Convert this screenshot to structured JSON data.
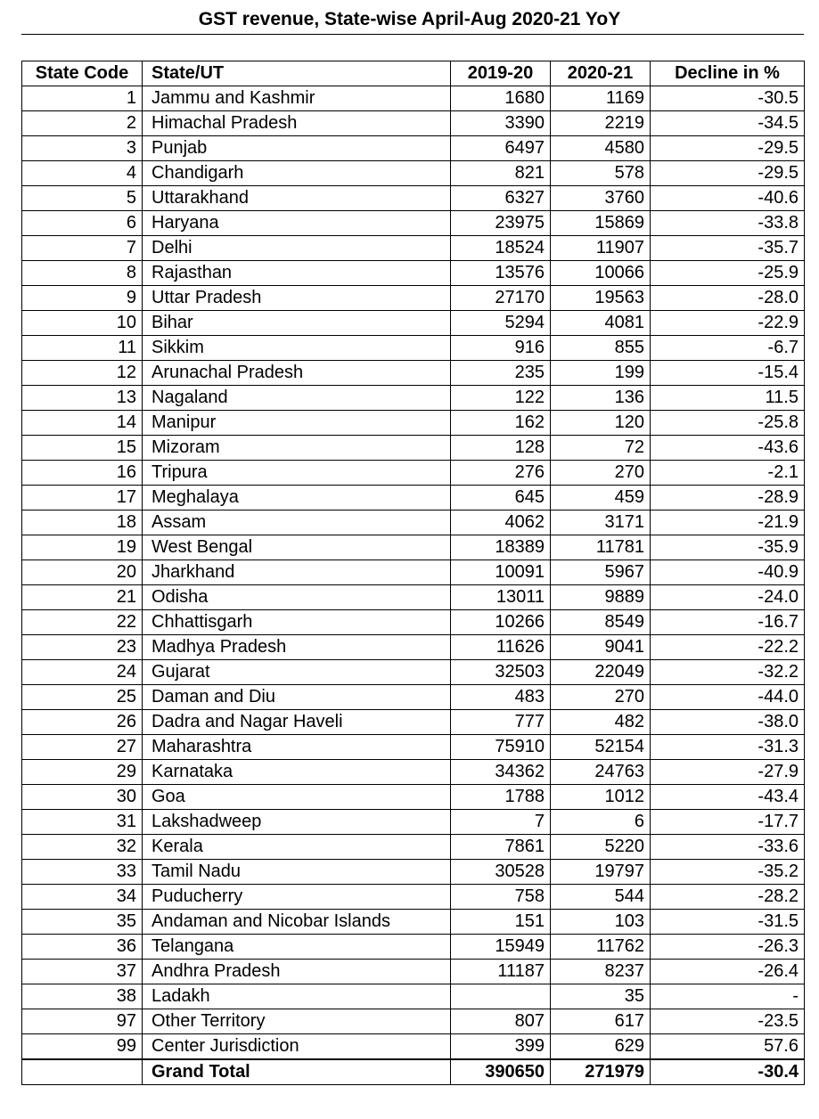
{
  "title": "GST revenue, State-wise April-Aug 2020-21 YoY",
  "columns": {
    "state_code": "State Code",
    "state_ut": "State/UT",
    "y2019": "2019-20",
    "y2020": "2020-21",
    "decline": "Decline in %"
  },
  "rows": [
    {
      "code": "1",
      "name": "Jammu and Kashmir",
      "y2019": "1680",
      "y2020": "1169",
      "decline": "-30.5"
    },
    {
      "code": "2",
      "name": "Himachal Pradesh",
      "y2019": "3390",
      "y2020": "2219",
      "decline": "-34.5"
    },
    {
      "code": "3",
      "name": "Punjab",
      "y2019": "6497",
      "y2020": "4580",
      "decline": "-29.5"
    },
    {
      "code": "4",
      "name": "Chandigarh",
      "y2019": "821",
      "y2020": "578",
      "decline": "-29.5"
    },
    {
      "code": "5",
      "name": "Uttarakhand",
      "y2019": "6327",
      "y2020": "3760",
      "decline": "-40.6"
    },
    {
      "code": "6",
      "name": "Haryana",
      "y2019": "23975",
      "y2020": "15869",
      "decline": "-33.8"
    },
    {
      "code": "7",
      "name": "Delhi",
      "y2019": "18524",
      "y2020": "11907",
      "decline": "-35.7"
    },
    {
      "code": "8",
      "name": "Rajasthan",
      "y2019": "13576",
      "y2020": "10066",
      "decline": "-25.9"
    },
    {
      "code": "9",
      "name": "Uttar Pradesh",
      "y2019": "27170",
      "y2020": "19563",
      "decline": "-28.0"
    },
    {
      "code": "10",
      "name": "Bihar",
      "y2019": "5294",
      "y2020": "4081",
      "decline": "-22.9"
    },
    {
      "code": "11",
      "name": "Sikkim",
      "y2019": "916",
      "y2020": "855",
      "decline": "-6.7"
    },
    {
      "code": "12",
      "name": "Arunachal Pradesh",
      "y2019": "235",
      "y2020": "199",
      "decline": "-15.4"
    },
    {
      "code": "13",
      "name": "Nagaland",
      "y2019": "122",
      "y2020": "136",
      "decline": "11.5"
    },
    {
      "code": "14",
      "name": "Manipur",
      "y2019": "162",
      "y2020": "120",
      "decline": "-25.8"
    },
    {
      "code": "15",
      "name": "Mizoram",
      "y2019": "128",
      "y2020": "72",
      "decline": "-43.6"
    },
    {
      "code": "16",
      "name": "Tripura",
      "y2019": "276",
      "y2020": "270",
      "decline": "-2.1"
    },
    {
      "code": "17",
      "name": "Meghalaya",
      "y2019": "645",
      "y2020": "459",
      "decline": "-28.9"
    },
    {
      "code": "18",
      "name": "Assam",
      "y2019": "4062",
      "y2020": "3171",
      "decline": "-21.9"
    },
    {
      "code": "19",
      "name": "West Bengal",
      "y2019": "18389",
      "y2020": "11781",
      "decline": "-35.9"
    },
    {
      "code": "20",
      "name": "Jharkhand",
      "y2019": "10091",
      "y2020": "5967",
      "decline": "-40.9"
    },
    {
      "code": "21",
      "name": "Odisha",
      "y2019": "13011",
      "y2020": "9889",
      "decline": "-24.0"
    },
    {
      "code": "22",
      "name": "Chhattisgarh",
      "y2019": "10266",
      "y2020": "8549",
      "decline": "-16.7"
    },
    {
      "code": "23",
      "name": "Madhya Pradesh",
      "y2019": "11626",
      "y2020": "9041",
      "decline": "-22.2"
    },
    {
      "code": "24",
      "name": "Gujarat",
      "y2019": "32503",
      "y2020": "22049",
      "decline": "-32.2"
    },
    {
      "code": "25",
      "name": "Daman and Diu",
      "y2019": "483",
      "y2020": "270",
      "decline": "-44.0"
    },
    {
      "code": "26",
      "name": "Dadra and Nagar Haveli",
      "y2019": "777",
      "y2020": "482",
      "decline": "-38.0"
    },
    {
      "code": "27",
      "name": "Maharashtra",
      "y2019": "75910",
      "y2020": "52154",
      "decline": "-31.3"
    },
    {
      "code": "29",
      "name": "Karnataka",
      "y2019": "34362",
      "y2020": "24763",
      "decline": "-27.9"
    },
    {
      "code": "30",
      "name": "Goa",
      "y2019": "1788",
      "y2020": "1012",
      "decline": "-43.4"
    },
    {
      "code": "31",
      "name": "Lakshadweep",
      "y2019": "7",
      "y2020": "6",
      "decline": "-17.7"
    },
    {
      "code": "32",
      "name": "Kerala",
      "y2019": "7861",
      "y2020": "5220",
      "decline": "-33.6"
    },
    {
      "code": "33",
      "name": "Tamil Nadu",
      "y2019": "30528",
      "y2020": "19797",
      "decline": "-35.2"
    },
    {
      "code": "34",
      "name": "Puducherry",
      "y2019": "758",
      "y2020": "544",
      "decline": "-28.2"
    },
    {
      "code": "35",
      "name": "Andaman and Nicobar Islands",
      "y2019": "151",
      "y2020": "103",
      "decline": "-31.5"
    },
    {
      "code": "36",
      "name": "Telangana",
      "y2019": "15949",
      "y2020": "11762",
      "decline": "-26.3"
    },
    {
      "code": "37",
      "name": "Andhra Pradesh",
      "y2019": "11187",
      "y2020": "8237",
      "decline": "-26.4"
    },
    {
      "code": "38",
      "name": "Ladakh",
      "y2019": "",
      "y2020": "35",
      "decline": "-"
    },
    {
      "code": "97",
      "name": "Other Territory",
      "y2019": "807",
      "y2020": "617",
      "decline": "-23.5"
    },
    {
      "code": "99",
      "name": "Center Jurisdiction",
      "y2019": "399",
      "y2020": "629",
      "decline": "57.6"
    }
  ],
  "total": {
    "label": "Grand Total",
    "y2019": "390650",
    "y2020": "271979",
    "decline": "-30.4"
  }
}
